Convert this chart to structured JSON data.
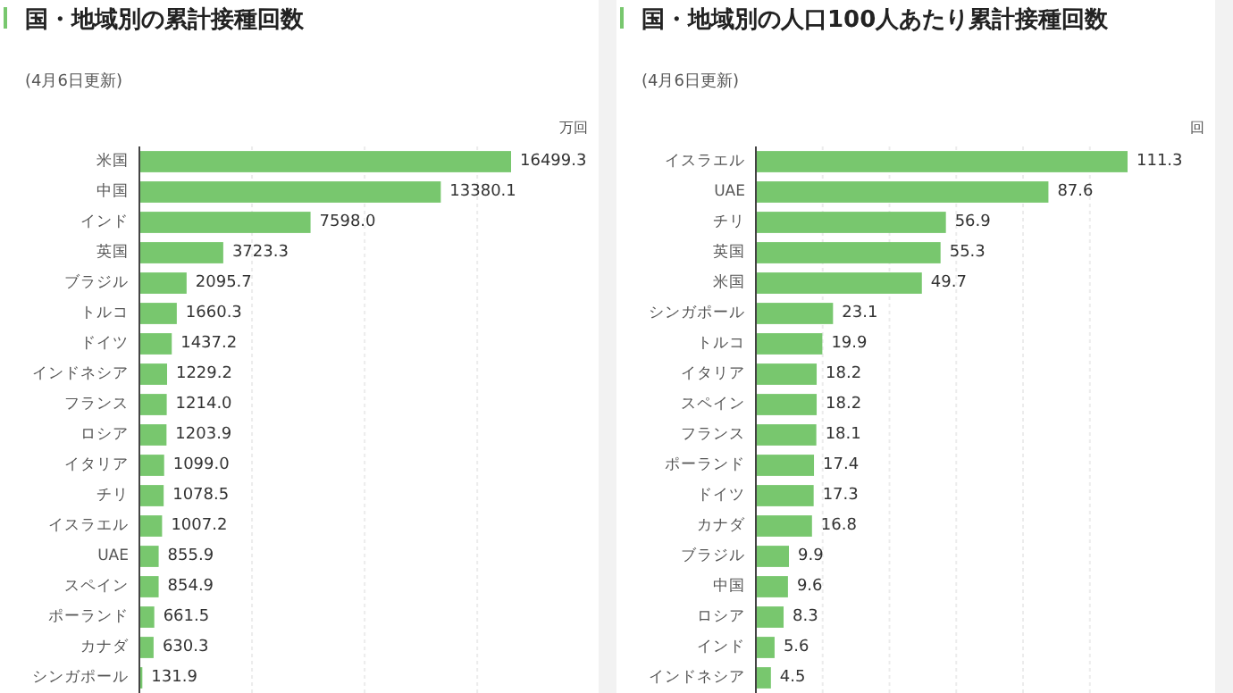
{
  "chart_data": [
    {
      "type": "bar",
      "orientation": "horizontal",
      "title": "国・地域別の累計接種回数",
      "subtitle": "(4月6日更新)",
      "xlabel": "万回",
      "categories": [
        "米国",
        "中国",
        "インド",
        "英国",
        "ブラジル",
        "トルコ",
        "ドイツ",
        "インドネシア",
        "フランス",
        "ロシア",
        "イタリア",
        "チリ",
        "イスラエル",
        "UAE",
        "スペイン",
        "ポーランド",
        "カナダ",
        "シンガポール"
      ],
      "values": [
        16499.3,
        13380.1,
        7598.0,
        3723.3,
        2095.7,
        1660.3,
        1437.2,
        1229.2,
        1214.0,
        1203.9,
        1099.0,
        1078.5,
        1007.2,
        855.9,
        854.9,
        661.5,
        630.3,
        131.9
      ],
      "value_labels": [
        "16499.3",
        "13380.1",
        "7598.0",
        "3723.3",
        "2095.7",
        "1660.3",
        "1437.2",
        "1229.2",
        "1214.0",
        "1203.9",
        "1099.0",
        "1078.5",
        "1007.2",
        "855.9",
        "854.9",
        "661.5",
        "630.3",
        "131.9"
      ],
      "color": "#78c76e",
      "xticks": [
        {
          "value": 5000,
          "label": null
        },
        {
          "value": 10000,
          "label": null
        },
        {
          "value": 15000,
          "label": null
        }
      ],
      "grid": "x",
      "tick_labels": "y"
    },
    {
      "type": "bar",
      "orientation": "horizontal",
      "title": "国・地域別の人口100人あたり累計接種回数",
      "subtitle": "(4月6日更新)",
      "xlabel": "回",
      "categories": [
        "イスラエル",
        "UAE",
        "チリ",
        "英国",
        "米国",
        "シンガポール",
        "トルコ",
        "イタリア",
        "スペイン",
        "フランス",
        "ポーランド",
        "ドイツ",
        "カナダ",
        "ブラジル",
        "中国",
        "ロシア",
        "インド",
        "インドネシア"
      ],
      "values": [
        111.3,
        87.6,
        56.9,
        55.3,
        49.7,
        23.1,
        19.9,
        18.2,
        18.2,
        18.1,
        17.4,
        17.3,
        16.8,
        9.9,
        9.6,
        8.3,
        5.6,
        4.5
      ],
      "data_labels": true,
      "color": "#78c76e",
      "xticks": [
        {
          "value": 20,
          "label": null
        },
        {
          "value": 40,
          "label": null
        },
        {
          "value": 60,
          "label": null
        },
        {
          "value": 80,
          "label": null
        },
        {
          "value": 100,
          "label": null
        }
      ],
      "grid": "x",
      "tick_labels": "y"
    }
  ]
}
